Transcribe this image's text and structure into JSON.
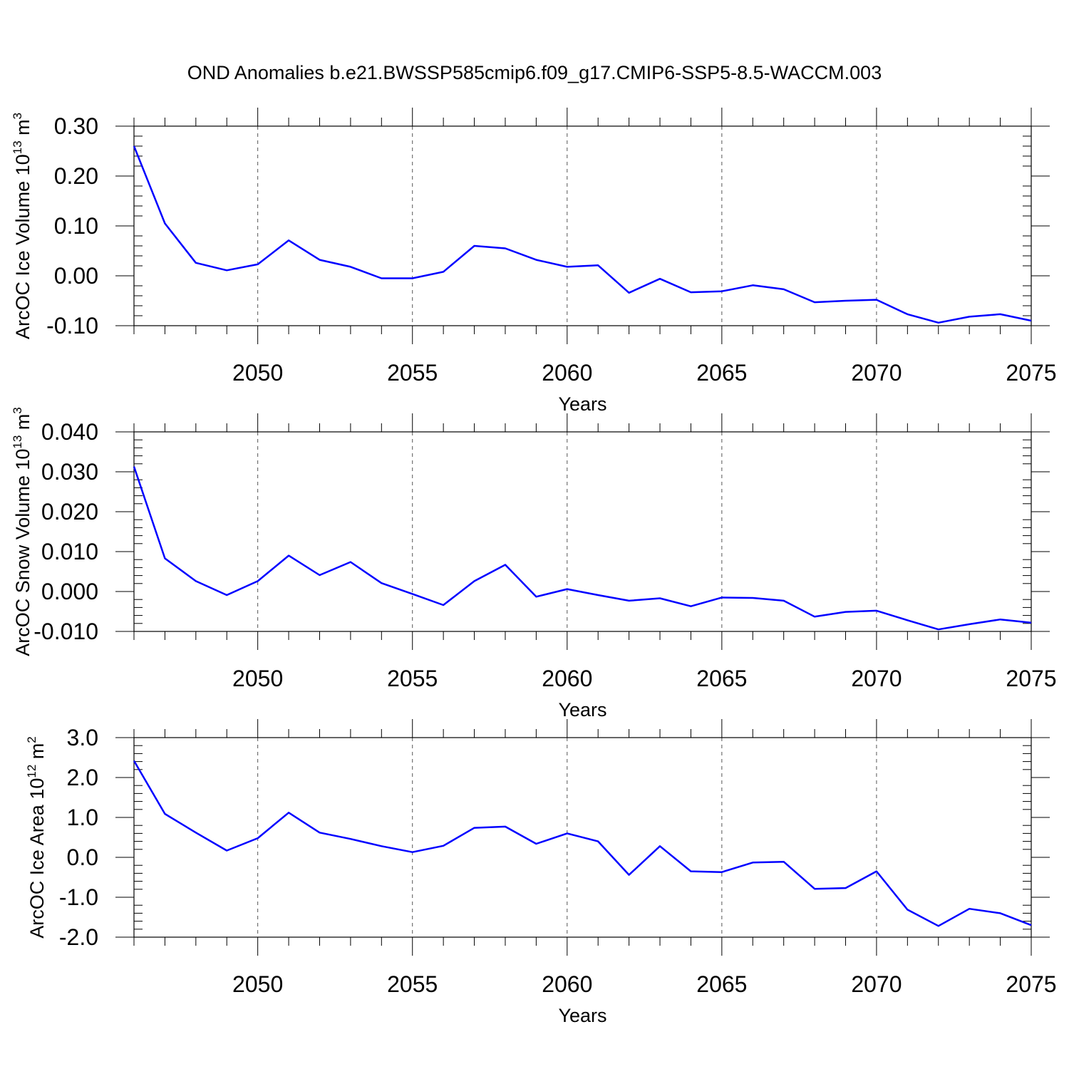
{
  "title": "OND Anomalies b.e21.BWSSP585cmip6.f09_g17.CMIP6-SSP5-8.5-WACCM.003",
  "colors": {
    "line": "#0000ff",
    "axis": "#000000",
    "grid": "#555555"
  },
  "chart_data": [
    {
      "type": "line",
      "ylabel": {
        "base": "ArcOC Ice Volume 10",
        "exp": "13",
        "unit": " m",
        "unit_exp": "3"
      },
      "xlabel": "Years",
      "xlim": [
        2046,
        2075
      ],
      "ylim": [
        -0.1,
        0.3
      ],
      "xticks": [
        2050,
        2055,
        2060,
        2065,
        2070,
        2075
      ],
      "xtick_labels": [
        "2050",
        "2055",
        "2060",
        "2065",
        "2070",
        "2075"
      ],
      "yticks": [
        -0.1,
        0.0,
        0.1,
        0.2,
        0.3
      ],
      "ytick_labels": [
        "-0.10",
        "0.00",
        "0.10",
        "0.20",
        "0.30"
      ],
      "grid": "vertical dashed at major x ticks",
      "series": [
        {
          "x": [
            2046,
            2047,
            2048,
            2049,
            2050,
            2051,
            2052,
            2053,
            2054,
            2055,
            2056,
            2057,
            2058,
            2059,
            2060,
            2061,
            2062,
            2063,
            2064,
            2065,
            2066,
            2067,
            2068,
            2069,
            2070,
            2071,
            2072,
            2073,
            2074,
            2075
          ],
          "y": [
            0.26,
            0.105,
            0.026,
            0.011,
            0.023,
            0.071,
            0.032,
            0.018,
            -0.005,
            -0.005,
            0.008,
            0.06,
            0.055,
            0.032,
            0.018,
            0.021,
            -0.034,
            -0.006,
            -0.033,
            -0.031,
            -0.019,
            -0.027,
            -0.053,
            -0.05,
            -0.048,
            -0.077,
            -0.094,
            -0.082,
            -0.077,
            -0.09
          ]
        }
      ]
    },
    {
      "type": "line",
      "ylabel": {
        "base": "ArcOC Snow Volume 10",
        "exp": "13",
        "unit": " m",
        "unit_exp": "3"
      },
      "xlabel": "Years",
      "xlim": [
        2046,
        2075
      ],
      "ylim": [
        -0.01,
        0.04
      ],
      "xticks": [
        2050,
        2055,
        2060,
        2065,
        2070,
        2075
      ],
      "xtick_labels": [
        "2050",
        "2055",
        "2060",
        "2065",
        "2070",
        "2075"
      ],
      "yticks": [
        -0.01,
        0.0,
        0.01,
        0.02,
        0.03,
        0.04
      ],
      "ytick_labels": [
        "-0.010",
        "0.000",
        "0.010",
        "0.020",
        "0.030",
        "0.040"
      ],
      "grid": "vertical dashed at major x ticks",
      "series": [
        {
          "x": [
            2046,
            2047,
            2048,
            2049,
            2050,
            2051,
            2052,
            2053,
            2054,
            2055,
            2056,
            2057,
            2058,
            2059,
            2060,
            2061,
            2062,
            2063,
            2064,
            2065,
            2066,
            2067,
            2068,
            2069,
            2070,
            2071,
            2072,
            2073,
            2074,
            2075
          ],
          "y": [
            0.0313,
            0.0083,
            0.0026,
            -0.0009,
            0.0026,
            0.009,
            0.0041,
            0.0074,
            0.0021,
            -0.0006,
            -0.0034,
            0.0026,
            0.0067,
            -0.0013,
            0.0006,
            -0.0009,
            -0.0023,
            -0.0017,
            -0.0037,
            -0.0015,
            -0.0016,
            -0.0023,
            -0.0063,
            -0.0051,
            -0.0048,
            -0.0072,
            -0.0095,
            -0.0082,
            -0.007,
            -0.0078
          ]
        }
      ]
    },
    {
      "type": "line",
      "ylabel": {
        "base": "ArcOC Ice Area 10",
        "exp": "12",
        "unit": " m",
        "unit_exp": "2"
      },
      "xlabel": "Years",
      "xlim": [
        2046,
        2075
      ],
      "ylim": [
        -2.0,
        3.0
      ],
      "xticks": [
        2050,
        2055,
        2060,
        2065,
        2070,
        2075
      ],
      "xtick_labels": [
        "2050",
        "2055",
        "2060",
        "2065",
        "2070",
        "2075"
      ],
      "yticks": [
        -2.0,
        -1.0,
        0.0,
        1.0,
        2.0,
        3.0
      ],
      "ytick_labels": [
        "-2.0",
        "-1.0",
        "0.0",
        "1.0",
        "2.0",
        "3.0"
      ],
      "grid": "vertical dashed at major x ticks",
      "series": [
        {
          "x": [
            2046,
            2047,
            2048,
            2049,
            2050,
            2051,
            2052,
            2053,
            2054,
            2055,
            2056,
            2057,
            2058,
            2059,
            2060,
            2061,
            2062,
            2063,
            2064,
            2065,
            2066,
            2067,
            2068,
            2069,
            2070,
            2071,
            2072,
            2073,
            2074,
            2075
          ],
          "y": [
            2.42,
            1.09,
            0.62,
            0.17,
            0.48,
            1.12,
            0.62,
            0.46,
            0.28,
            0.13,
            0.29,
            0.74,
            0.77,
            0.34,
            0.6,
            0.4,
            -0.44,
            0.28,
            -0.35,
            -0.37,
            -0.13,
            -0.11,
            -0.79,
            -0.77,
            -0.35,
            -1.31,
            -1.72,
            -1.29,
            -1.4,
            -1.7
          ]
        }
      ]
    }
  ]
}
